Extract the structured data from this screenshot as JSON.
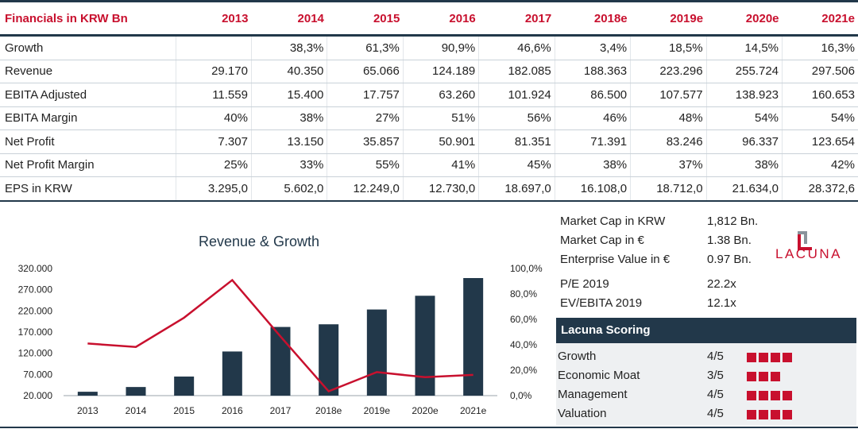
{
  "table": {
    "header": [
      "Financials in KRW Bn",
      "2013",
      "2014",
      "2015",
      "2016",
      "2017",
      "2018e",
      "2019e",
      "2020e",
      "2021e"
    ],
    "rows": [
      {
        "label": "Growth",
        "values": [
          "",
          "38,3%",
          "61,3%",
          "90,9%",
          "46,6%",
          "3,4%",
          "18,5%",
          "14,5%",
          "16,3%"
        ]
      },
      {
        "label": "Revenue",
        "values": [
          "29.170",
          "40.350",
          "65.066",
          "124.189",
          "182.085",
          "188.363",
          "223.296",
          "255.724",
          "297.506"
        ]
      },
      {
        "label": "EBITA Adjusted",
        "values": [
          "11.559",
          "15.400",
          "17.757",
          "63.260",
          "101.924",
          "86.500",
          "107.577",
          "138.923",
          "160.653"
        ]
      },
      {
        "label": "EBITA Margin",
        "values": [
          "40%",
          "38%",
          "27%",
          "51%",
          "56%",
          "46%",
          "48%",
          "54%",
          "54%"
        ]
      },
      {
        "label": "Net Profit",
        "values": [
          "7.307",
          "13.150",
          "35.857",
          "50.901",
          "81.351",
          "71.391",
          "83.246",
          "96.337",
          "123.654"
        ]
      },
      {
        "label": "Net Profit Margin",
        "values": [
          "25%",
          "33%",
          "55%",
          "41%",
          "45%",
          "38%",
          "37%",
          "38%",
          "42%"
        ]
      },
      {
        "label": "EPS in KRW",
        "values": [
          "3.295,0",
          "5.602,0",
          "12.249,0",
          "12.730,0",
          "18.697,0",
          "16.108,0",
          "18.712,0",
          "21.634,0",
          "28.372,6"
        ]
      }
    ]
  },
  "chart_data": {
    "type": "bar",
    "title": "Revenue & Growth",
    "categories": [
      "2013",
      "2014",
      "2015",
      "2016",
      "2017",
      "2018e",
      "2019e",
      "2020e",
      "2021e"
    ],
    "series": [
      {
        "kind": "bar",
        "axis": "left",
        "color": "#22384a",
        "values": [
          29170,
          40350,
          65066,
          124189,
          182085,
          188363,
          223296,
          255724,
          297506
        ]
      },
      {
        "kind": "line",
        "axis": "right",
        "color": "#c8102e",
        "values": [
          41.0,
          38.3,
          61.3,
          90.9,
          46.6,
          3.4,
          18.5,
          14.5,
          16.3
        ]
      }
    ],
    "y_left": {
      "min": 20000,
      "max": 320000,
      "ticks": [
        "20.000",
        "70.000",
        "120.000",
        "170.000",
        "220.000",
        "270.000",
        "320.000"
      ],
      "tick_values": [
        20000,
        70000,
        120000,
        170000,
        220000,
        270000,
        320000
      ]
    },
    "y_right": {
      "min": 0,
      "max": 100,
      "ticks": [
        "0,0%",
        "20,0%",
        "40,0%",
        "60,0%",
        "80,0%",
        "100,0%"
      ],
      "tick_values": [
        0,
        20,
        40,
        60,
        80,
        100
      ]
    },
    "grid": false,
    "legend": "none"
  },
  "metrics": [
    {
      "label": "Market Cap in KRW",
      "value": "1,812 Bn."
    },
    {
      "label": "Market Cap in €",
      "value": "1.38 Bn."
    },
    {
      "label": "Enterprise Value in €",
      "value": "0.97 Bn."
    },
    {
      "label": "P/E 2019",
      "value": "22.2x"
    },
    {
      "label": "EV/EBITA 2019",
      "value": "12.1x"
    }
  ],
  "logo": {
    "text": "LACUNA",
    "color": "#c8102e",
    "mark_color": "#8a939b"
  },
  "scoring": {
    "title": "Lacuna Scoring",
    "items": [
      {
        "label": "Growth",
        "score": "4/5",
        "squares": 4
      },
      {
        "label": "Economic Moat",
        "score": "3/5",
        "squares": 3
      },
      {
        "label": "Management",
        "score": "4/5",
        "squares": 4
      },
      {
        "label": "Valuation",
        "score": "4/5",
        "squares": 4
      }
    ]
  },
  "colors": {
    "accent": "#c8102e",
    "navy": "#22384a"
  }
}
